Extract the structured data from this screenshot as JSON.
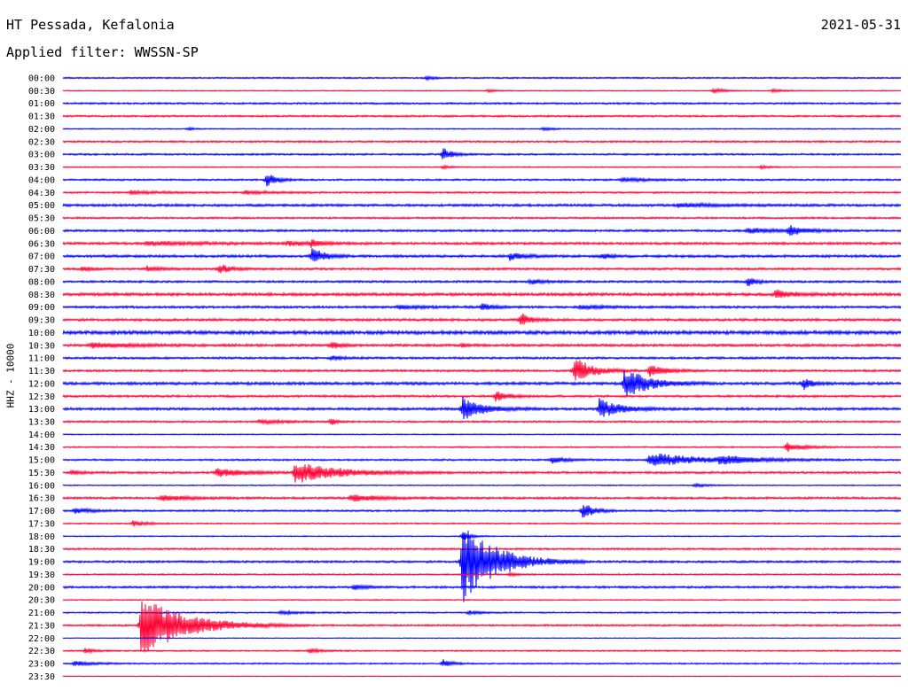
{
  "header": {
    "station": "HT Pessada, Kefalonia",
    "date": "2021-05-31",
    "filter": "Applied filter: WWSSN-SP"
  },
  "y_axis_label": "HHZ - 10000",
  "colors": {
    "trace_odd": "#0000ff",
    "trace_even": "#ff0033",
    "background": "#ffffff",
    "text": "#000000"
  },
  "chart_data": {
    "type": "line",
    "x_range_minutes": [
      0,
      30
    ],
    "rows": [
      {
        "label": "00:00",
        "color": "blue",
        "noise": 0.8,
        "events": [
          {
            "t": 13.0,
            "amp": 2,
            "w": 0.3
          }
        ]
      },
      {
        "label": "00:30",
        "color": "red",
        "noise": 0.5,
        "events": [
          {
            "t": 15.2,
            "amp": 2,
            "w": 0.3
          },
          {
            "t": 23.3,
            "amp": 4,
            "w": 0.3
          },
          {
            "t": 25.4,
            "amp": 2,
            "w": 0.4
          }
        ]
      },
      {
        "label": "01:00",
        "color": "blue",
        "noise": 1.0,
        "events": []
      },
      {
        "label": "01:30",
        "color": "red",
        "noise": 1.0,
        "events": []
      },
      {
        "label": "02:00",
        "color": "blue",
        "noise": 0.6,
        "events": [
          {
            "t": 4.5,
            "amp": 2,
            "w": 0.2
          },
          {
            "t": 17.2,
            "amp": 2,
            "w": 0.3
          }
        ]
      },
      {
        "label": "02:30",
        "color": "red",
        "noise": 1.0,
        "events": []
      },
      {
        "label": "03:00",
        "color": "blue",
        "noise": 1.0,
        "events": [
          {
            "t": 13.6,
            "amp": 8,
            "w": 0.3
          }
        ]
      },
      {
        "label": "03:30",
        "color": "red",
        "noise": 0.6,
        "events": [
          {
            "t": 13.6,
            "amp": 2,
            "w": 0.3
          },
          {
            "t": 25.0,
            "amp": 2,
            "w": 0.3
          }
        ]
      },
      {
        "label": "04:00",
        "color": "blue",
        "noise": 1.0,
        "events": [
          {
            "t": 7.3,
            "amp": 9,
            "w": 0.3
          },
          {
            "t": 20.0,
            "amp": 2,
            "w": 1.0
          }
        ]
      },
      {
        "label": "04:30",
        "color": "red",
        "noise": 1.0,
        "events": [
          {
            "t": 2.4,
            "amp": 2,
            "w": 1.0
          },
          {
            "t": 6.5,
            "amp": 2,
            "w": 0.8
          }
        ]
      },
      {
        "label": "05:00",
        "color": "blue",
        "noise": 1.4,
        "events": [
          {
            "t": 22.0,
            "amp": 2,
            "w": 1.5
          }
        ]
      },
      {
        "label": "05:30",
        "color": "red",
        "noise": 1.0,
        "events": []
      },
      {
        "label": "06:00",
        "color": "blue",
        "noise": 1.2,
        "events": [
          {
            "t": 24.5,
            "amp": 3,
            "w": 1.0
          },
          {
            "t": 26.0,
            "amp": 6,
            "w": 0.5
          }
        ]
      },
      {
        "label": "06:30",
        "color": "red",
        "noise": 1.4,
        "events": [
          {
            "t": 3.0,
            "amp": 2,
            "w": 2.0
          },
          {
            "t": 8.0,
            "amp": 2,
            "w": 1.0
          },
          {
            "t": 8.9,
            "amp": 4,
            "w": 0.3
          }
        ]
      },
      {
        "label": "07:00",
        "color": "blue",
        "noise": 1.4,
        "events": [
          {
            "t": 8.9,
            "amp": 10,
            "w": 0.4
          },
          {
            "t": 16.0,
            "amp": 4,
            "w": 0.5
          },
          {
            "t": 19.3,
            "amp": 3,
            "w": 0.3
          }
        ]
      },
      {
        "label": "07:30",
        "color": "red",
        "noise": 1.2,
        "events": [
          {
            "t": 0.7,
            "amp": 3,
            "w": 0.3
          },
          {
            "t": 3.0,
            "amp": 3,
            "w": 0.5
          },
          {
            "t": 5.6,
            "amp": 6,
            "w": 0.4
          }
        ]
      },
      {
        "label": "08:00",
        "color": "blue",
        "noise": 1.2,
        "events": [
          {
            "t": 16.7,
            "amp": 3,
            "w": 0.5
          },
          {
            "t": 24.5,
            "amp": 5,
            "w": 0.3
          }
        ]
      },
      {
        "label": "08:30",
        "color": "red",
        "noise": 1.6,
        "events": [
          {
            "t": 25.5,
            "amp": 5,
            "w": 0.6
          }
        ]
      },
      {
        "label": "09:00",
        "color": "blue",
        "noise": 1.3,
        "events": [
          {
            "t": 12.0,
            "amp": 2,
            "w": 1.0
          },
          {
            "t": 15.0,
            "amp": 4,
            "w": 0.4
          },
          {
            "t": 18.5,
            "amp": 2,
            "w": 1.0
          }
        ]
      },
      {
        "label": "09:30",
        "color": "red",
        "noise": 1.4,
        "events": [
          {
            "t": 16.4,
            "amp": 8,
            "w": 0.3
          }
        ]
      },
      {
        "label": "10:00",
        "color": "blue",
        "noise": 2.0,
        "events": []
      },
      {
        "label": "10:30",
        "color": "red",
        "noise": 1.4,
        "events": [
          {
            "t": 1.0,
            "amp": 3,
            "w": 1.5
          },
          {
            "t": 9.6,
            "amp": 5,
            "w": 0.3
          },
          {
            "t": 14.3,
            "amp": 2,
            "w": 0.2
          }
        ]
      },
      {
        "label": "11:00",
        "color": "blue",
        "noise": 1.2,
        "events": [
          {
            "t": 9.6,
            "amp": 2,
            "w": 0.5
          }
        ]
      },
      {
        "label": "11:30",
        "color": "red",
        "noise": 1.2,
        "events": [
          {
            "t": 18.3,
            "amp": 16,
            "w": 0.6
          },
          {
            "t": 21.0,
            "amp": 8,
            "w": 0.5
          }
        ]
      },
      {
        "label": "12:00",
        "color": "blue",
        "noise": 1.6,
        "events": [
          {
            "t": 20.1,
            "amp": 18,
            "w": 0.8
          },
          {
            "t": 26.5,
            "amp": 7,
            "w": 0.3
          }
        ]
      },
      {
        "label": "12:30",
        "color": "red",
        "noise": 1.2,
        "events": [
          {
            "t": 15.5,
            "amp": 6,
            "w": 0.4
          }
        ]
      },
      {
        "label": "13:00",
        "color": "blue",
        "noise": 1.4,
        "events": [
          {
            "t": 14.3,
            "amp": 13,
            "w": 0.7
          },
          {
            "t": 19.2,
            "amp": 12,
            "w": 0.7
          }
        ]
      },
      {
        "label": "13:30",
        "color": "red",
        "noise": 1.0,
        "events": [
          {
            "t": 7.0,
            "amp": 2,
            "w": 1.0
          },
          {
            "t": 9.6,
            "amp": 4,
            "w": 0.2
          }
        ]
      },
      {
        "label": "14:00",
        "color": "blue",
        "noise": 0.6,
        "events": []
      },
      {
        "label": "14:30",
        "color": "red",
        "noise": 0.8,
        "events": [
          {
            "t": 25.9,
            "amp": 5,
            "w": 0.6
          }
        ]
      },
      {
        "label": "15:00",
        "color": "blue",
        "noise": 1.0,
        "events": [
          {
            "t": 17.5,
            "amp": 4,
            "w": 0.5
          },
          {
            "t": 21.0,
            "amp": 8,
            "w": 1.8
          },
          {
            "t": 23.5,
            "amp": 4,
            "w": 1.2
          }
        ]
      },
      {
        "label": "15:30",
        "color": "red",
        "noise": 1.2,
        "events": [
          {
            "t": 0.3,
            "amp": 3,
            "w": 0.3
          },
          {
            "t": 5.5,
            "amp": 5,
            "w": 1.0
          },
          {
            "t": 8.3,
            "amp": 12,
            "w": 1.5
          }
        ]
      },
      {
        "label": "16:00",
        "color": "blue",
        "noise": 0.6,
        "events": [
          {
            "t": 22.6,
            "amp": 2,
            "w": 0.5
          }
        ]
      },
      {
        "label": "16:30",
        "color": "red",
        "noise": 1.2,
        "events": [
          {
            "t": 3.5,
            "amp": 3,
            "w": 1.0
          },
          {
            "t": 10.3,
            "amp": 4,
            "w": 1.0
          }
        ]
      },
      {
        "label": "17:00",
        "color": "blue",
        "noise": 1.0,
        "events": [
          {
            "t": 0.4,
            "amp": 3,
            "w": 0.7
          },
          {
            "t": 18.6,
            "amp": 10,
            "w": 0.4
          }
        ]
      },
      {
        "label": "17:30",
        "color": "red",
        "noise": 0.8,
        "events": [
          {
            "t": 2.5,
            "amp": 3,
            "w": 0.5
          }
        ]
      },
      {
        "label": "18:00",
        "color": "blue",
        "noise": 0.6,
        "events": [
          {
            "t": 14.3,
            "amp": 5,
            "w": 0.3
          }
        ]
      },
      {
        "label": "18:30",
        "color": "red",
        "noise": 1.0,
        "events": []
      },
      {
        "label": "19:00",
        "color": "blue",
        "noise": 1.2,
        "events": [
          {
            "t": 14.3,
            "amp": 50,
            "w": 1.1
          }
        ]
      },
      {
        "label": "19:30",
        "color": "red",
        "noise": 0.8,
        "events": [
          {
            "t": 16.0,
            "amp": 2,
            "w": 0.3
          }
        ]
      },
      {
        "label": "20:00",
        "color": "blue",
        "noise": 1.2,
        "events": [
          {
            "t": 10.4,
            "amp": 3,
            "w": 0.4
          }
        ]
      },
      {
        "label": "20:30",
        "color": "red",
        "noise": 0.6,
        "events": []
      },
      {
        "label": "21:00",
        "color": "blue",
        "noise": 0.8,
        "events": [
          {
            "t": 7.8,
            "amp": 2,
            "w": 0.6
          },
          {
            "t": 14.5,
            "amp": 2,
            "w": 0.5
          }
        ]
      },
      {
        "label": "21:30",
        "color": "red",
        "noise": 1.0,
        "events": [
          {
            "t": 2.8,
            "amp": 34,
            "w": 1.5
          }
        ]
      },
      {
        "label": "22:00",
        "color": "blue",
        "noise": 0.4,
        "events": []
      },
      {
        "label": "22:30",
        "color": "red",
        "noise": 0.8,
        "events": [
          {
            "t": 0.8,
            "amp": 3,
            "w": 0.3
          },
          {
            "t": 8.8,
            "amp": 3,
            "w": 0.4
          }
        ]
      },
      {
        "label": "23:00",
        "color": "blue",
        "noise": 0.8,
        "events": [
          {
            "t": 0.4,
            "amp": 3,
            "w": 0.6
          },
          {
            "t": 13.6,
            "amp": 5,
            "w": 0.3
          }
        ]
      },
      {
        "label": "23:30",
        "color": "red",
        "noise": 0.4,
        "events": []
      }
    ]
  }
}
